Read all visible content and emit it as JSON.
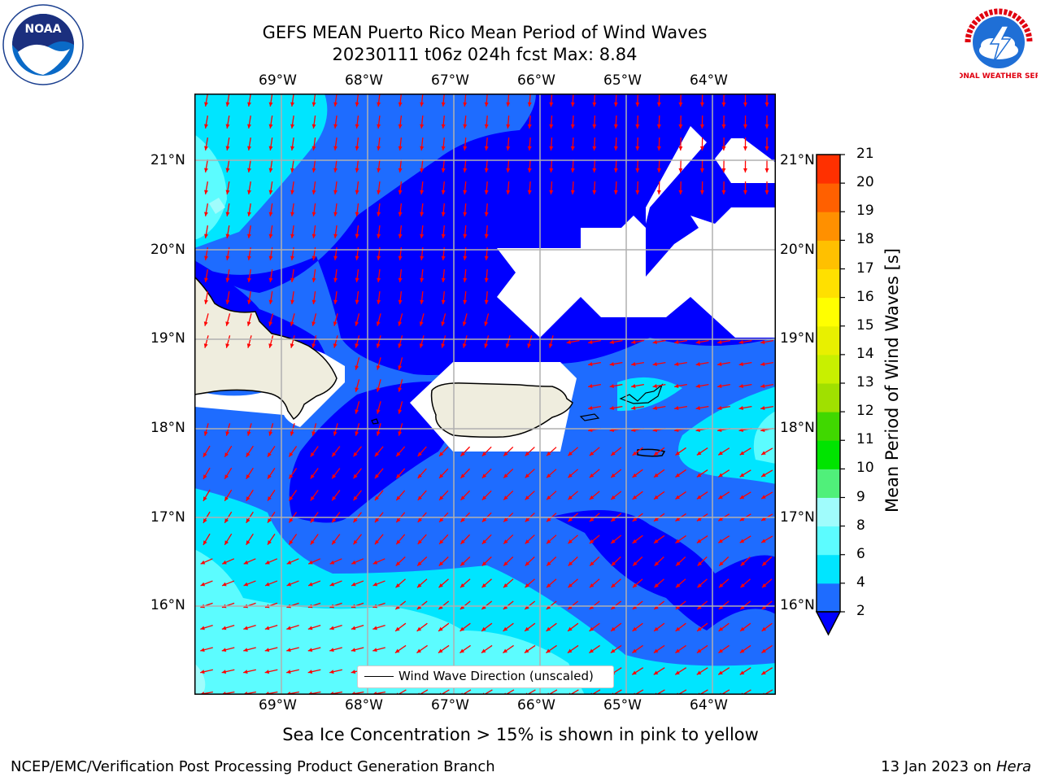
{
  "header": {
    "title_line1": "GEFS MEAN Puerto Rico Mean Period of Wind Waves",
    "title_line2": "20230111 t06z 024h fcst   Max: 8.84",
    "left_logo": "noaa-logo",
    "right_logo": "national-weather-service-logo",
    "noaa_logo_text": "NOAA",
    "nws_logo_text": "NATIONAL WEATHER SERVICE"
  },
  "map": {
    "lon_labels": [
      "69°W",
      "68°W",
      "67°W",
      "66°W",
      "65°W",
      "64°W"
    ],
    "lat_labels": [
      "21°N",
      "20°N",
      "19°N",
      "18°N",
      "17°N",
      "16°N"
    ],
    "legend_label": "Wind Wave Direction (unscaled)",
    "colors": {
      "land": "#efedde",
      "band_2": "#0000ff",
      "band_2_4": "#1e6cff",
      "band_4_6": "#00e5ff",
      "band_6_8": "#5cfcff",
      "band_8_9": "#a0fcfc",
      "arrow": "#ff0000",
      "grid": "#b0b0b0"
    }
  },
  "colorbar": {
    "label": "Mean Period of Wind Waves [s]",
    "ticks": [
      "2",
      "4",
      "6",
      "8",
      "9",
      "10",
      "11",
      "12",
      "13",
      "14",
      "15",
      "16",
      "17",
      "18",
      "19",
      "20",
      "21"
    ],
    "colors": [
      "#1e6cff",
      "#00e5ff",
      "#5cfcff",
      "#a0fcfc",
      "#50f07a",
      "#00e400",
      "#40d800",
      "#a0e000",
      "#c8f000",
      "#e8f000",
      "#ffff00",
      "#ffe000",
      "#ffc000",
      "#ff9000",
      "#ff6000",
      "#ff3000",
      "#ff0000"
    ],
    "extend_color": "#0000ff"
  },
  "caption": "Sea Ice Concentration > 15% is shown in pink to yellow",
  "footer": {
    "left": "NCEP/EMC/Verification Post Processing Product Generation Branch",
    "right_prefix": "13 Jan 2023 on",
    "right_machine": "Hera"
  }
}
